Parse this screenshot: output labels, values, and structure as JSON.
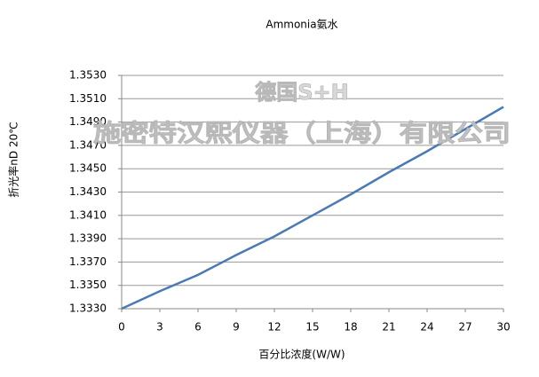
{
  "chart_data": {
    "type": "line",
    "title": "Ammonia氨水",
    "x_label": "百分比浓度(W/W)",
    "y_label": "折光率nD 20℃",
    "annotations": [
      "德国S+H",
      "施密特汉熙仪器（上海）有限公司"
    ],
    "x": [
      0,
      3,
      6,
      9,
      12,
      15,
      18,
      21,
      24,
      27,
      30
    ],
    "series": [
      {
        "name": "Ammonia",
        "color": "#4a7ab5",
        "values": [
          1.333,
          1.3345,
          1.3359,
          1.3376,
          1.3392,
          1.341,
          1.3428,
          1.3447,
          1.3465,
          1.3484,
          1.3503
        ]
      }
    ],
    "xlim": [
      0,
      30
    ],
    "xticks": [
      0,
      3,
      6,
      9,
      12,
      15,
      18,
      21,
      24,
      27,
      30
    ],
    "ylim": [
      1.333,
      1.353
    ],
    "yticks": [
      {
        "value": 1.333,
        "label": "1.3330"
      },
      {
        "value": 1.335,
        "label": "1.3350"
      },
      {
        "value": 1.337,
        "label": "1.3370"
      },
      {
        "value": 1.339,
        "label": "1.3390"
      },
      {
        "value": 1.341,
        "label": "1.3410"
      },
      {
        "value": 1.343,
        "label": "1.3430"
      },
      {
        "value": 1.345,
        "label": "1.3450"
      },
      {
        "value": 1.347,
        "label": "1.3470"
      },
      {
        "value": 1.349,
        "label": "1.3490"
      },
      {
        "value": 1.351,
        "label": "1.3510"
      },
      {
        "value": 1.353,
        "label": "1.3530"
      }
    ],
    "grid": true
  }
}
